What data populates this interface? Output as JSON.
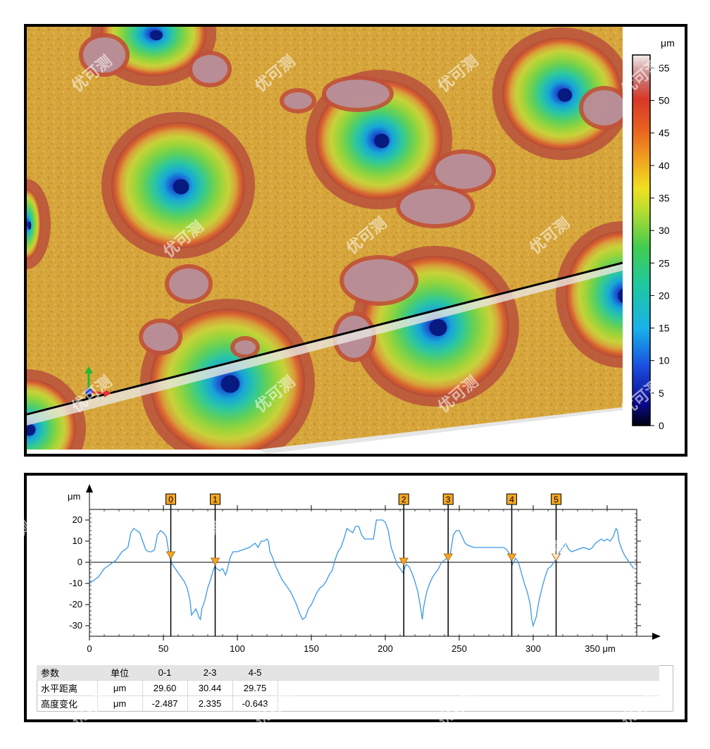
{
  "colorbar": {
    "unit": "μm",
    "ticks": [
      0,
      5,
      10,
      15,
      20,
      25,
      30,
      35,
      40,
      45,
      50,
      55
    ],
    "min": 0,
    "max": 57
  },
  "watermark_text": "优可测",
  "chart_data": {
    "type": "line",
    "x_unit": "μm",
    "y_unit": "μm",
    "xlim": [
      0,
      370
    ],
    "ylim": [
      -35,
      25
    ],
    "x_ticks": [
      0,
      50,
      100,
      150,
      200,
      250,
      300,
      350
    ],
    "x_tick_labels": [
      "0",
      "50",
      "100",
      "150",
      "200",
      "250",
      "300",
      "350 μm"
    ],
    "y_ticks": [
      20,
      10,
      0,
      -10,
      -20,
      -30
    ],
    "grid": false,
    "series": [
      {
        "color": "#3a97e8",
        "points": [
          [
            0,
            -10
          ],
          [
            2,
            -9
          ],
          [
            4,
            -8
          ],
          [
            6,
            -7
          ],
          [
            8,
            -5
          ],
          [
            10,
            -3
          ],
          [
            12,
            -2
          ],
          [
            14,
            -1
          ],
          [
            16,
            0
          ],
          [
            18,
            1
          ],
          [
            20,
            3
          ],
          [
            22,
            5
          ],
          [
            24,
            6
          ],
          [
            26,
            7
          ],
          [
            28,
            14
          ],
          [
            30,
            16
          ],
          [
            32,
            15
          ],
          [
            34,
            14
          ],
          [
            36,
            10
          ],
          [
            38,
            6
          ],
          [
            40,
            5
          ],
          [
            42,
            5
          ],
          [
            44,
            6
          ],
          [
            46,
            13
          ],
          [
            48,
            15
          ],
          [
            50,
            14
          ],
          [
            52,
            12
          ],
          [
            54,
            3
          ],
          [
            56,
            -1
          ],
          [
            58,
            -3
          ],
          [
            60,
            -5
          ],
          [
            62,
            -7
          ],
          [
            64,
            -9
          ],
          [
            66,
            -12
          ],
          [
            68,
            -18
          ],
          [
            69,
            -25
          ],
          [
            70,
            -24
          ],
          [
            72,
            -22
          ],
          [
            74,
            -26
          ],
          [
            75,
            -27
          ],
          [
            76,
            -22
          ],
          [
            78,
            -18
          ],
          [
            80,
            -12
          ],
          [
            82,
            -8
          ],
          [
            84,
            -3
          ],
          [
            85,
            -2
          ],
          [
            86,
            -3
          ],
          [
            88,
            -4
          ],
          [
            90,
            -3
          ],
          [
            92,
            -6
          ],
          [
            93,
            -4
          ],
          [
            95,
            2
          ],
          [
            97,
            5
          ],
          [
            100,
            5
          ],
          [
            104,
            6
          ],
          [
            108,
            7
          ],
          [
            110,
            8
          ],
          [
            112,
            9
          ],
          [
            114,
            7
          ],
          [
            116,
            10
          ],
          [
            118,
            10
          ],
          [
            120,
            11
          ],
          [
            121,
            10
          ],
          [
            122,
            5
          ],
          [
            124,
            2
          ],
          [
            126,
            -2
          ],
          [
            128,
            -5
          ],
          [
            130,
            -8
          ],
          [
            132,
            -10
          ],
          [
            134,
            -12
          ],
          [
            136,
            -14
          ],
          [
            138,
            -17
          ],
          [
            140,
            -20
          ],
          [
            142,
            -24
          ],
          [
            144,
            -27
          ],
          [
            146,
            -26
          ],
          [
            148,
            -22
          ],
          [
            150,
            -20
          ],
          [
            152,
            -17
          ],
          [
            154,
            -14
          ],
          [
            156,
            -12
          ],
          [
            158,
            -11
          ],
          [
            160,
            -9
          ],
          [
            162,
            -6
          ],
          [
            164,
            -4
          ],
          [
            166,
            1
          ],
          [
            168,
            5
          ],
          [
            170,
            7
          ],
          [
            172,
            11
          ],
          [
            174,
            16
          ],
          [
            176,
            15
          ],
          [
            178,
            14
          ],
          [
            180,
            17
          ],
          [
            182,
            17
          ],
          [
            184,
            13
          ],
          [
            186,
            11
          ],
          [
            188,
            11
          ],
          [
            190,
            11
          ],
          [
            192,
            11
          ],
          [
            194,
            20
          ],
          [
            196,
            20
          ],
          [
            198,
            20
          ],
          [
            200,
            19
          ],
          [
            202,
            15
          ],
          [
            204,
            7
          ],
          [
            206,
            3
          ],
          [
            208,
            -1
          ],
          [
            210,
            -3
          ],
          [
            212,
            -5
          ],
          [
            214,
            -1
          ],
          [
            216,
            -2
          ],
          [
            218,
            -5
          ],
          [
            220,
            -9
          ],
          [
            222,
            -14
          ],
          [
            224,
            -22
          ],
          [
            225,
            -27
          ],
          [
            226,
            -21
          ],
          [
            228,
            -14
          ],
          [
            230,
            -10
          ],
          [
            232,
            -7
          ],
          [
            234,
            -5
          ],
          [
            236,
            -3
          ],
          [
            238,
            0
          ],
          [
            240,
            1
          ],
          [
            242,
            2
          ],
          [
            244,
            4
          ],
          [
            246,
            13
          ],
          [
            248,
            15
          ],
          [
            250,
            15
          ],
          [
            252,
            12
          ],
          [
            254,
            9
          ],
          [
            256,
            8
          ],
          [
            260,
            7
          ],
          [
            264,
            7
          ],
          [
            268,
            7
          ],
          [
            272,
            7
          ],
          [
            276,
            7
          ],
          [
            280,
            7
          ],
          [
            282,
            6
          ],
          [
            284,
            4
          ],
          [
            285,
            1
          ],
          [
            286,
            -1
          ],
          [
            288,
            2
          ],
          [
            290,
            0
          ],
          [
            292,
            -5
          ],
          [
            294,
            -10
          ],
          [
            296,
            -14
          ],
          [
            298,
            -20
          ],
          [
            299,
            -27
          ],
          [
            300,
            -30
          ],
          [
            302,
            -26
          ],
          [
            304,
            -18
          ],
          [
            306,
            -12
          ],
          [
            308,
            -7
          ],
          [
            310,
            -3
          ],
          [
            312,
            -2
          ],
          [
            314,
            0
          ],
          [
            316,
            2
          ],
          [
            318,
            5
          ],
          [
            320,
            7
          ],
          [
            322,
            9
          ],
          [
            324,
            6
          ],
          [
            326,
            5
          ],
          [
            330,
            6
          ],
          [
            334,
            7
          ],
          [
            338,
            6
          ],
          [
            340,
            7
          ],
          [
            342,
            9
          ],
          [
            344,
            10
          ],
          [
            346,
            11
          ],
          [
            348,
            10
          ],
          [
            350,
            11
          ],
          [
            352,
            10
          ],
          [
            354,
            12
          ],
          [
            356,
            16
          ],
          [
            357,
            15
          ],
          [
            358,
            10
          ],
          [
            360,
            6
          ],
          [
            362,
            3
          ],
          [
            364,
            1
          ],
          [
            366,
            -1
          ],
          [
            368,
            -3
          ]
        ]
      }
    ],
    "markers": [
      {
        "label": "0",
        "x": 55,
        "y": 3
      },
      {
        "label": "1",
        "x": 85,
        "y": 0
      },
      {
        "label": "2",
        "x": 212.5,
        "y": 0
      },
      {
        "label": "3",
        "x": 242.5,
        "y": 2
      },
      {
        "label": "4",
        "x": 285.5,
        "y": 2
      },
      {
        "label": "5",
        "x": 315.5,
        "y": 2
      }
    ]
  },
  "table": {
    "headers": [
      "参数",
      "单位",
      "0-1",
      "2-3",
      "4-5"
    ],
    "rows": [
      [
        "水平距离",
        "μm",
        "29.60",
        "30.44",
        "29.75"
      ],
      [
        "高度变化",
        "μm",
        "-2.487",
        "2.335",
        "-0.643"
      ]
    ]
  }
}
